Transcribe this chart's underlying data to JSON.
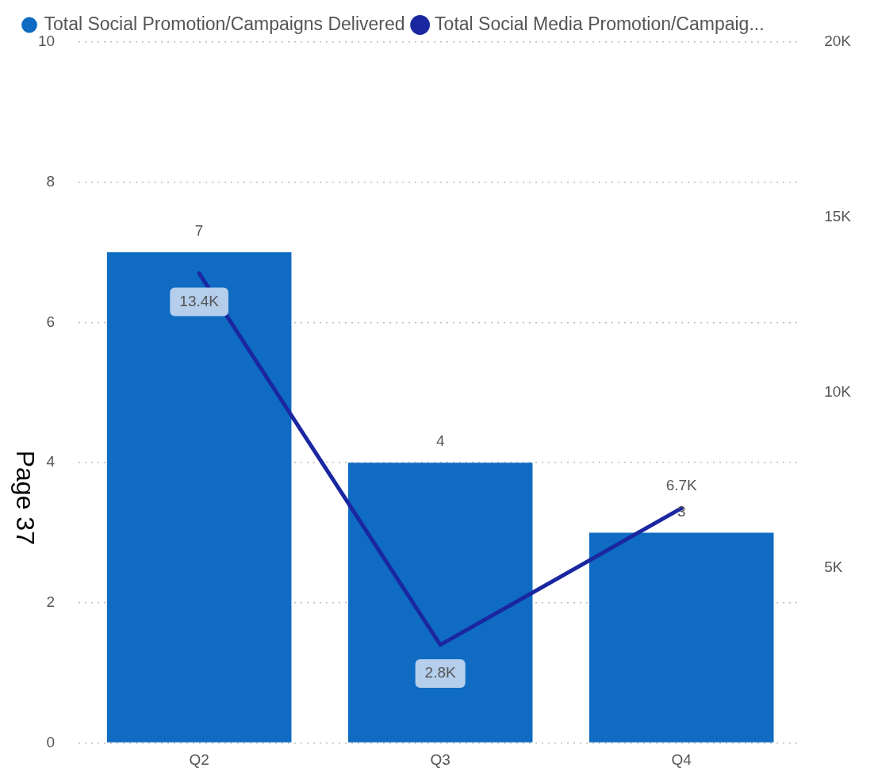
{
  "chart_data": {
    "type": "bar",
    "categories": [
      "Q2",
      "Q3",
      "Q4"
    ],
    "series": [
      {
        "name": "Total Social Promotion/Campaigns Delivered",
        "color": "#0f6cc2",
        "values": [
          7,
          4,
          3
        ],
        "value_labels": [
          "7",
          "4",
          "3"
        ]
      },
      {
        "name": "Total Social Media Promotion/Campaig...",
        "type": "line",
        "axis": "y2",
        "color": "#1a27a0",
        "values": [
          13400,
          2800,
          6700
        ],
        "value_labels": [
          "13.4K",
          "2.8K",
          "6.7K"
        ]
      }
    ],
    "ylim": [
      0,
      10
    ],
    "yticks": [
      0,
      2,
      4,
      6,
      8,
      10
    ],
    "y2lim": [
      0,
      20000
    ],
    "y2ticks": [
      {
        "value": 5000,
        "label": "5K"
      },
      {
        "value": 10000,
        "label": "10K"
      },
      {
        "value": 15000,
        "label": "15K"
      },
      {
        "value": 20000,
        "label": "20K"
      }
    ],
    "grid": "y",
    "legend": "top left",
    "marker": "none",
    "annotations": [
      "Page 37"
    ]
  }
}
